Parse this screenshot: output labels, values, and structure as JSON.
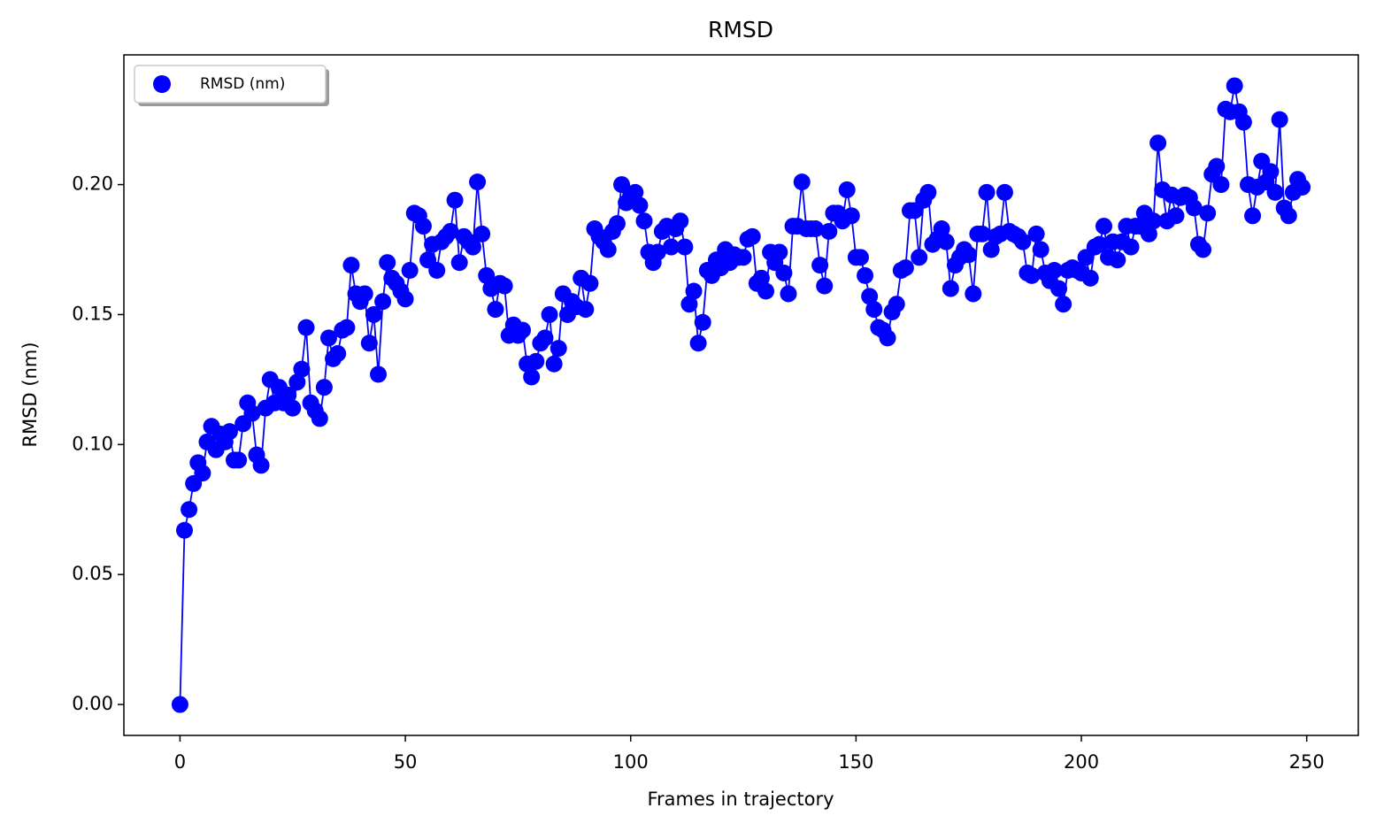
{
  "chart_data": {
    "type": "line",
    "title": "RMSD",
    "xlabel": "Frames in trajectory",
    "ylabel": "RMSD (nm)",
    "legend": "upper left",
    "marker": true,
    "xlim": [
      -12.45,
      261.45
    ],
    "ylim": [
      -0.0119,
      0.2499
    ],
    "xticks": [
      0,
      50,
      100,
      150,
      200,
      250
    ],
    "yticks": [
      {
        "value": 0,
        "label": "0.00"
      },
      {
        "value": 0.05,
        "label": "0.05"
      },
      {
        "value": 0.1,
        "label": "0.10"
      },
      {
        "value": 0.15,
        "label": "0.15"
      },
      {
        "value": 0.2,
        "label": "0.20"
      }
    ],
    "x": [
      0,
      1,
      2,
      3,
      4,
      5,
      6,
      7,
      8,
      9,
      10,
      11,
      12,
      13,
      14,
      15,
      16,
      17,
      18,
      19,
      20,
      21,
      22,
      23,
      24,
      25,
      26,
      27,
      28,
      29,
      30,
      31,
      32,
      33,
      34,
      35,
      36,
      37,
      38,
      39,
      40,
      41,
      42,
      43,
      44,
      45,
      46,
      47,
      48,
      49,
      50,
      51,
      52,
      53,
      54,
      55,
      56,
      57,
      58,
      59,
      60,
      61,
      62,
      63,
      64,
      65,
      66,
      67,
      68,
      69,
      70,
      71,
      72,
      73,
      74,
      75,
      76,
      77,
      78,
      79,
      80,
      81,
      82,
      83,
      84,
      85,
      86,
      87,
      88,
      89,
      90,
      91,
      92,
      93,
      94,
      95,
      96,
      97,
      98,
      99,
      100,
      101,
      102,
      103,
      104,
      105,
      106,
      107,
      108,
      109,
      110,
      111,
      112,
      113,
      114,
      115,
      116,
      117,
      118,
      119,
      120,
      121,
      122,
      123,
      124,
      125,
      126,
      127,
      128,
      129,
      130,
      131,
      132,
      133,
      134,
      135,
      136,
      137,
      138,
      139,
      140,
      141,
      142,
      143,
      144,
      145,
      146,
      147,
      148,
      149,
      150,
      151,
      152,
      153,
      154,
      155,
      156,
      157,
      158,
      159,
      160,
      161,
      162,
      163,
      164,
      165,
      166,
      167,
      168,
      169,
      170,
      171,
      172,
      173,
      174,
      175,
      176,
      177,
      178,
      179,
      180,
      181,
      182,
      183,
      184,
      185,
      186,
      187,
      188,
      189,
      190,
      191,
      192,
      193,
      194,
      195,
      196,
      197,
      198,
      199,
      200,
      201,
      202,
      203,
      204,
      205,
      206,
      207,
      208,
      209,
      210,
      211,
      212,
      213,
      214,
      215,
      216,
      217,
      218,
      219,
      220,
      221,
      222,
      223,
      224,
      225,
      226,
      227,
      228,
      229,
      230,
      231,
      232,
      233,
      234,
      235,
      236,
      237,
      238,
      239,
      240,
      241,
      242,
      243,
      244,
      245,
      246,
      247,
      248,
      249
    ],
    "series": [
      {
        "name": "RMSD (nm)",
        "color": "#0000ff",
        "values": [
          0.0,
          0.067,
          0.075,
          0.085,
          0.093,
          0.089,
          0.101,
          0.107,
          0.098,
          0.104,
          0.101,
          0.105,
          0.094,
          0.094,
          0.108,
          0.116,
          0.112,
          0.096,
          0.092,
          0.114,
          0.125,
          0.116,
          0.122,
          0.116,
          0.119,
          0.114,
          0.124,
          0.129,
          0.145,
          0.116,
          0.113,
          0.11,
          0.122,
          0.141,
          0.133,
          0.135,
          0.144,
          0.145,
          0.169,
          0.158,
          0.155,
          0.158,
          0.139,
          0.15,
          0.127,
          0.155,
          0.17,
          0.164,
          0.162,
          0.159,
          0.156,
          0.167,
          0.189,
          0.188,
          0.184,
          0.171,
          0.177,
          0.167,
          0.178,
          0.18,
          0.182,
          0.194,
          0.17,
          0.18,
          0.178,
          0.176,
          0.201,
          0.181,
          0.165,
          0.16,
          0.152,
          0.162,
          0.161,
          0.142,
          0.146,
          0.142,
          0.144,
          0.131,
          0.126,
          0.132,
          0.139,
          0.141,
          0.15,
          0.131,
          0.137,
          0.158,
          0.15,
          0.155,
          0.153,
          0.164,
          0.152,
          0.162,
          0.183,
          0.18,
          0.178,
          0.175,
          0.182,
          0.185,
          0.2,
          0.193,
          0.196,
          0.197,
          0.192,
          0.186,
          0.174,
          0.17,
          0.174,
          0.182,
          0.184,
          0.176,
          0.183,
          0.186,
          0.176,
          0.154,
          0.159,
          0.139,
          0.147,
          0.167,
          0.165,
          0.171,
          0.168,
          0.175,
          0.17,
          0.173,
          0.172,
          0.172,
          0.179,
          0.18,
          0.162,
          0.164,
          0.159,
          0.174,
          0.17,
          0.174,
          0.166,
          0.158,
          0.184,
          0.184,
          0.201,
          0.183,
          0.183,
          0.183,
          0.169,
          0.161,
          0.182,
          0.189,
          0.189,
          0.186,
          0.198,
          0.188,
          0.172,
          0.172,
          0.165,
          0.157,
          0.152,
          0.145,
          0.144,
          0.141,
          0.151,
          0.154,
          0.167,
          0.168,
          0.19,
          0.19,
          0.172,
          0.194,
          0.197,
          0.177,
          0.179,
          0.183,
          0.178,
          0.16,
          0.169,
          0.172,
          0.175,
          0.173,
          0.158,
          0.181,
          0.181,
          0.197,
          0.175,
          0.18,
          0.181,
          0.197,
          0.182,
          0.181,
          0.18,
          0.178,
          0.166,
          0.165,
          0.181,
          0.175,
          0.166,
          0.163,
          0.167,
          0.16,
          0.154,
          0.167,
          0.168,
          0.167,
          0.166,
          0.172,
          0.164,
          0.176,
          0.177,
          0.184,
          0.172,
          0.178,
          0.171,
          0.178,
          0.184,
          0.176,
          0.184,
          0.184,
          0.189,
          0.181,
          0.186,
          0.216,
          0.198,
          0.186,
          0.196,
          0.188,
          0.195,
          0.196,
          0.195,
          0.191,
          0.177,
          0.175,
          0.189,
          0.204,
          0.207,
          0.2,
          0.229,
          0.228,
          0.238,
          0.228,
          0.224,
          0.2,
          0.188,
          0.199,
          0.209,
          0.201,
          0.205,
          0.197,
          0.225,
          0.191,
          0.188,
          0.197,
          0.202,
          0.199
        ]
      }
    ]
  }
}
